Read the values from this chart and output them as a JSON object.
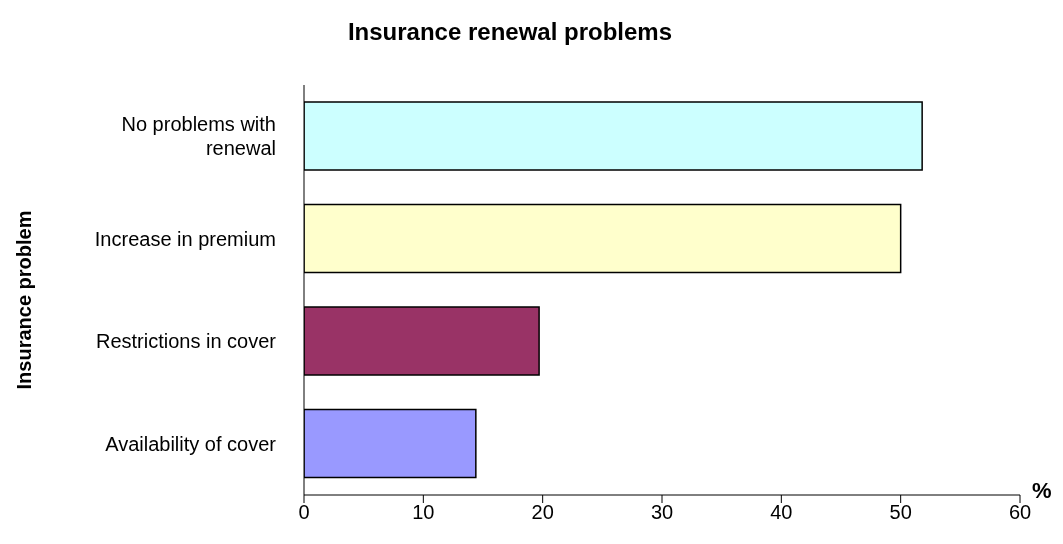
{
  "chart_data": {
    "type": "bar",
    "orientation": "horizontal",
    "title": "Insurance renewal problems",
    "ylabel": "Insurance problem",
    "xlabel": "%",
    "categories": [
      "No problems with renewal",
      "Increase in premium",
      "Restrictions in cover",
      "Availability of cover"
    ],
    "values": [
      51.8,
      50.0,
      19.7,
      14.4
    ],
    "colors": [
      "#ccffff",
      "#ffffcc",
      "#993366",
      "#9999ff"
    ],
    "xlim": [
      0,
      60
    ],
    "xticks": [
      0,
      10,
      20,
      30,
      40,
      50,
      60
    ],
    "grid": false,
    "legend": false
  }
}
